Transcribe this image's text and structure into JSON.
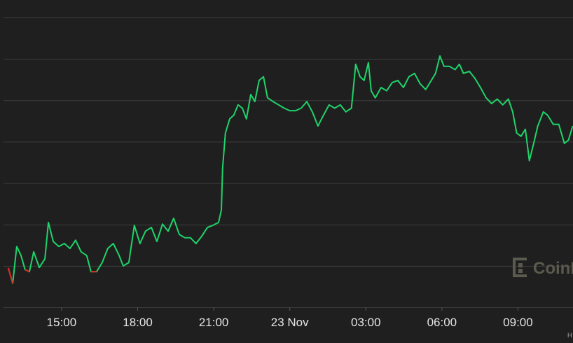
{
  "chart_data": {
    "type": "line",
    "watermark": "CoinDesk",
    "corner_note": "H",
    "xlim": [
      12.57,
      35.17
    ],
    "ylim": [
      0,
      7
    ],
    "xticks": [
      {
        "value": 15,
        "label": "15:00"
      },
      {
        "value": 18,
        "label": "18:00"
      },
      {
        "value": 21,
        "label": "21:00"
      },
      {
        "value": 24,
        "label": "23 Nov"
      },
      {
        "value": 27,
        "label": "03:00"
      },
      {
        "value": 30,
        "label": "06:00"
      },
      {
        "value": 33,
        "label": "09:00"
      }
    ],
    "yticks": [
      0,
      1,
      2,
      3,
      4,
      5,
      6,
      7
    ],
    "grid": true,
    "series": [
      {
        "color": "#1fd36a",
        "x": [
          12.9,
          13.07,
          13.23,
          13.4,
          13.56,
          13.73,
          13.9,
          14.12,
          14.34,
          14.48,
          14.67,
          14.89,
          15.11,
          15.33,
          15.55,
          15.77,
          15.99,
          16.16,
          16.38,
          16.6,
          16.82,
          17.04,
          17.27,
          17.43,
          17.65,
          17.87,
          18.09,
          18.31,
          18.54,
          18.76,
          18.98,
          19.2,
          19.42,
          19.64,
          19.86,
          20.08,
          20.3,
          20.52,
          20.75,
          20.97,
          21.19,
          21.3,
          21.35,
          21.46,
          21.63,
          21.79,
          21.96,
          22.13,
          22.29,
          22.46,
          22.62,
          22.79,
          22.96,
          23.12,
          23.34,
          23.56,
          23.78,
          24.0,
          24.23,
          24.45,
          24.67,
          24.89,
          25.11,
          25.33,
          25.55,
          25.77,
          25.99,
          26.21,
          26.43,
          26.6,
          26.77,
          26.93,
          27.1,
          27.21,
          27.37,
          27.6,
          27.82,
          28.04,
          28.26,
          28.48,
          28.7,
          28.92,
          29.14,
          29.36,
          29.58,
          29.75,
          29.92,
          30.08,
          30.3,
          30.52,
          30.69,
          30.85,
          31.08,
          31.3,
          31.52,
          31.74,
          31.96,
          32.18,
          32.4,
          32.62,
          32.79,
          32.95,
          33.12,
          33.29,
          33.45,
          33.62,
          33.78,
          34.0,
          34.17,
          34.39,
          34.61,
          34.83,
          34.99,
          35.16
        ],
        "values": [
          0.95,
          0.58,
          1.47,
          1.25,
          0.91,
          0.86,
          1.34,
          0.96,
          1.17,
          2.05,
          1.59,
          1.47,
          1.54,
          1.42,
          1.62,
          1.34,
          1.25,
          0.86,
          0.86,
          1.08,
          1.42,
          1.54,
          1.25,
          1.0,
          1.08,
          1.98,
          1.54,
          1.84,
          1.93,
          1.59,
          2.01,
          1.84,
          2.15,
          1.76,
          1.68,
          1.68,
          1.54,
          1.71,
          1.93,
          1.98,
          2.05,
          2.35,
          3.37,
          4.21,
          4.55,
          4.64,
          4.89,
          4.81,
          4.55,
          5.14,
          4.97,
          5.48,
          5.57,
          5.06,
          4.97,
          4.89,
          4.81,
          4.75,
          4.75,
          4.81,
          4.97,
          4.72,
          4.38,
          4.64,
          4.89,
          4.81,
          4.89,
          4.72,
          4.81,
          5.87,
          5.57,
          5.48,
          5.91,
          5.23,
          5.06,
          5.31,
          5.23,
          5.43,
          5.48,
          5.31,
          5.57,
          5.65,
          5.4,
          5.26,
          5.48,
          5.65,
          6.07,
          5.82,
          5.82,
          5.74,
          5.87,
          5.65,
          5.7,
          5.53,
          5.31,
          5.06,
          4.92,
          5.03,
          4.89,
          5.03,
          4.72,
          4.21,
          4.13,
          4.3,
          3.54,
          3.96,
          4.38,
          4.72,
          4.64,
          4.42,
          4.42,
          3.96,
          4.04,
          4.38
        ]
      },
      {
        "color": "#e3241f",
        "x": [
          12.9,
          13.07,
          null,
          13.56,
          13.73,
          null,
          16.16,
          16.38
        ],
        "values": [
          0.95,
          0.58,
          null,
          0.91,
          0.86,
          null,
          0.86,
          0.86
        ]
      }
    ]
  }
}
